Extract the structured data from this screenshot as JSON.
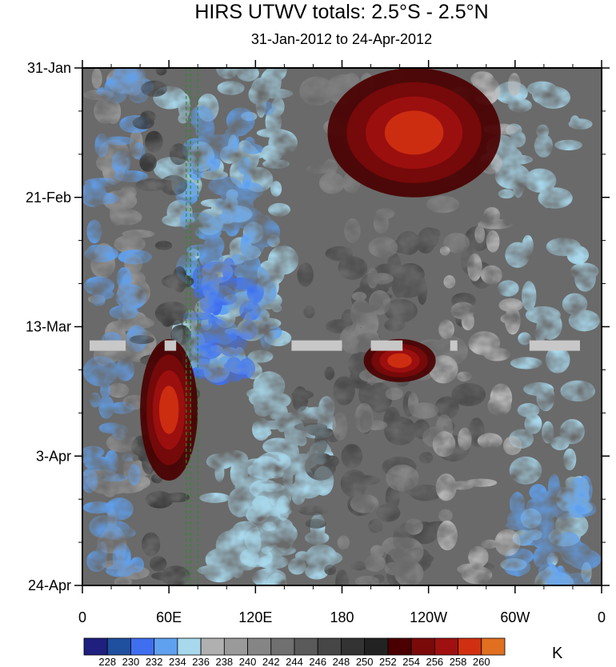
{
  "chart_data": {
    "type": "heatmap",
    "title": "HIRS UTWV totals: 2.5°S - 2.5°N",
    "subtitle": "31-Jan-2012 to 24-Apr-2012",
    "y_axis": {
      "reversed": true,
      "range": [
        "31-Jan",
        "24-Apr"
      ],
      "tick_labels": [
        "31-Jan",
        "21-Feb",
        "13-Mar",
        "3-Apr",
        "24-Apr"
      ]
    },
    "x_axis": {
      "range": [
        0,
        360
      ],
      "tick_labels": [
        "0",
        "60E",
        "120E",
        "180",
        "120W",
        "60W",
        "0"
      ]
    },
    "colorbar": {
      "unit": "K",
      "levels": [
        228,
        230,
        232,
        234,
        236,
        238,
        240,
        242,
        244,
        246,
        248,
        250,
        252,
        254,
        256,
        258,
        260
      ],
      "colors": [
        "#1f1f7f",
        "#1f4f9f",
        "#3f6fef",
        "#5fa0ef",
        "#a8d8ec",
        "#b0b0b0",
        "#9a9a9a",
        "#858585",
        "#707070",
        "#5a5a5a",
        "#464646",
        "#333333",
        "#222222",
        "#4a0000",
        "#7a0a0a",
        "#a01010",
        "#d03010",
        "#e07020"
      ]
    },
    "features": {
      "warm_regions": [
        {
          "lon_start": 40,
          "lon_end": 80,
          "date_start": "15-Mar",
          "date_end": "7-Apr"
        },
        {
          "lon_start": 170,
          "lon_end": 290,
          "date_start": "31-Jan",
          "date_end": "21-Feb"
        },
        {
          "lon_start": 195,
          "lon_end": 245,
          "date_start": "15-Mar",
          "date_end": "22-Mar"
        }
      ],
      "missing_segments_lon": [
        [
          5,
          30
        ],
        [
          57,
          65
        ],
        [
          145,
          180
        ],
        [
          200,
          222
        ],
        [
          255,
          260
        ],
        [
          310,
          345
        ]
      ],
      "missing_date": "16-Mar",
      "reference_lines_lon": [
        72,
        75,
        80
      ]
    }
  }
}
